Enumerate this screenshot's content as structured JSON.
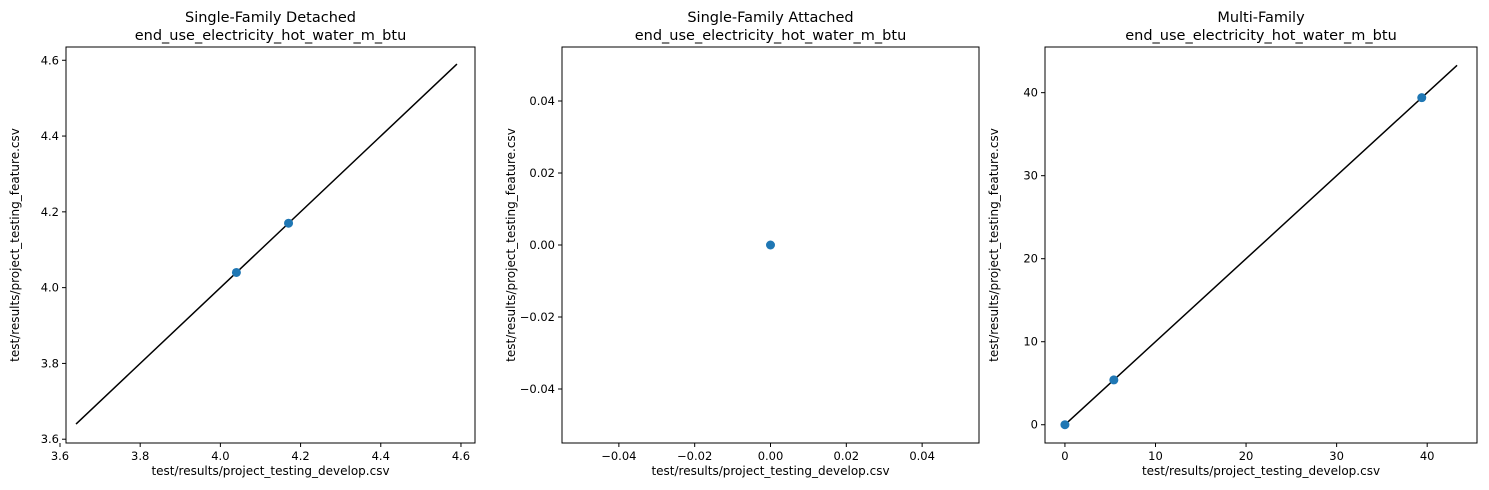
{
  "chart_data": [
    {
      "type": "scatter",
      "title": [
        "Single-Family Detached",
        "end_use_electricity_hot_water_m_btu"
      ],
      "xlabel": "test/results/project_testing_develop.csv",
      "ylabel": "test/results/project_testing_feature.csv",
      "xlim": [
        3.615,
        4.635
      ],
      "ylim": [
        3.59,
        4.635
      ],
      "xticks": [
        "3.6",
        "3.8",
        "4.0",
        "4.2",
        "4.4",
        "4.6"
      ],
      "yticks": [
        "3.6",
        "3.8",
        "4.0",
        "4.2",
        "4.4",
        "4.6"
      ],
      "xtick_values": [
        3.6,
        3.8,
        4.0,
        4.2,
        4.4,
        4.6
      ],
      "ytick_values": [
        3.6,
        3.8,
        4.0,
        4.2,
        4.4,
        4.6
      ],
      "points": [
        {
          "x": 4.04,
          "y": 4.04
        },
        {
          "x": 4.17,
          "y": 4.17
        }
      ],
      "identity_line": [
        [
          3.64,
          3.64
        ],
        [
          4.59,
          4.59
        ]
      ],
      "point_color": "#1f77b4",
      "line_color": "#000000"
    },
    {
      "type": "scatter",
      "title": [
        "Single-Family Attached",
        "end_use_electricity_hot_water_m_btu"
      ],
      "xlabel": "test/results/project_testing_develop.csv",
      "ylabel": "test/results/project_testing_feature.csv",
      "xlim": [
        -0.055,
        0.055
      ],
      "ylim": [
        -0.055,
        0.055
      ],
      "xticks": [
        "−0.04",
        "−0.02",
        "0.00",
        "0.02",
        "0.04"
      ],
      "yticks": [
        "−0.04",
        "−0.02",
        "0.00",
        "0.02",
        "0.04"
      ],
      "xtick_values": [
        -0.04,
        -0.02,
        0.0,
        0.02,
        0.04
      ],
      "ytick_values": [
        -0.04,
        -0.02,
        0.0,
        0.02,
        0.04
      ],
      "points": [
        {
          "x": 0.0,
          "y": 0.0
        }
      ],
      "identity_line": [],
      "point_color": "#1f77b4",
      "line_color": "#000000"
    },
    {
      "type": "scatter",
      "title": [
        "Multi-Family",
        "end_use_electricity_hot_water_m_btu"
      ],
      "xlabel": "test/results/project_testing_develop.csv",
      "ylabel": "test/results/project_testing_feature.csv",
      "xlim": [
        -2.2,
        45.5
      ],
      "ylim": [
        -2.2,
        45.5
      ],
      "xticks": [
        "0",
        "10",
        "20",
        "30",
        "40"
      ],
      "yticks": [
        "0",
        "10",
        "20",
        "30",
        "40"
      ],
      "xtick_values": [
        0,
        10,
        20,
        30,
        40
      ],
      "ytick_values": [
        0,
        10,
        20,
        30,
        40
      ],
      "points": [
        {
          "x": 0.0,
          "y": 0.0
        },
        {
          "x": 5.4,
          "y": 5.4
        },
        {
          "x": 39.4,
          "y": 39.4
        }
      ],
      "identity_line": [
        [
          0,
          0
        ],
        [
          43.3,
          43.3
        ]
      ],
      "point_color": "#1f77b4",
      "line_color": "#000000"
    }
  ]
}
